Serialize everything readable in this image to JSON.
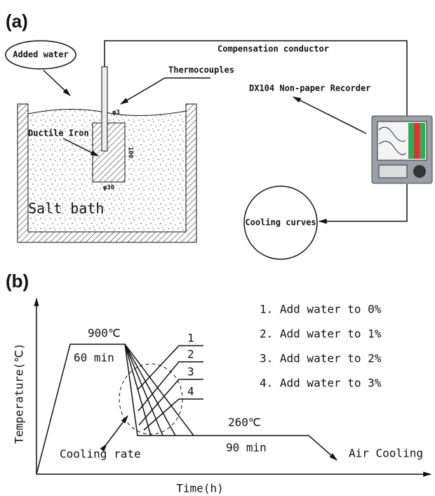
{
  "panel_a": {
    "label": "(a)",
    "added_water": "Added water",
    "compensation_conductor": "Compensation conductor",
    "thermocouples": "Thermocouples",
    "recorder": "DX104 Non-paper Recorder",
    "ductile_iron": "Ductile Iron",
    "salt_bath": "Salt bath",
    "cooling_curves": "Cooling curves",
    "rod_diameter": "φ3",
    "block_diameter": "φ30",
    "block_height": "100"
  },
  "panel_b": {
    "label": "(b)",
    "y_axis": "Temperature(℃)",
    "x_axis": "Time(h)",
    "peak_temp": "900℃",
    "peak_time": "60 min",
    "curve_labels": [
      "1",
      "2",
      "3",
      "4"
    ],
    "legend": [
      "1. Add water to 0%",
      "2. Add water to 1%",
      "3. Add water to 2%",
      "4. Add water to 3%"
    ],
    "hold_temp": "260℃",
    "hold_time": "90 min",
    "cooling_rate": "Cooling rate",
    "air_cooling": "Air Cooling"
  }
}
